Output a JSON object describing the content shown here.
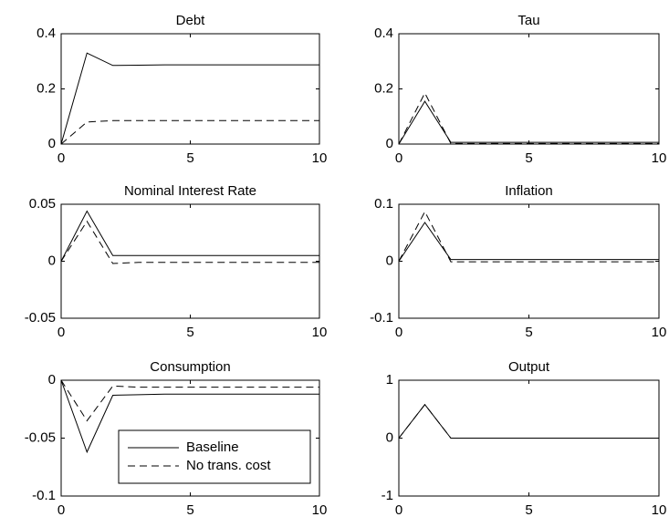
{
  "chart_data": [
    {
      "type": "line",
      "title": "Debt",
      "x": [
        0,
        1,
        2,
        3,
        4,
        5,
        6,
        7,
        8,
        9,
        10
      ],
      "xlim": [
        0,
        10
      ],
      "xticks": [
        0,
        5,
        10
      ],
      "ylim": [
        0,
        0.4
      ],
      "yticks": [
        0,
        0.2,
        0.4
      ],
      "series": [
        {
          "color": "#000000",
          "line_style": "solid",
          "values": [
            0,
            0.33,
            0.285,
            0.286,
            0.287,
            0.287,
            0.287,
            0.287,
            0.287,
            0.287,
            0.287
          ]
        },
        {
          "color": "#000000",
          "line_style": "dashed",
          "values": [
            0,
            0.08,
            0.085,
            0.085,
            0.085,
            0.085,
            0.085,
            0.085,
            0.085,
            0.085,
            0.085
          ]
        }
      ]
    },
    {
      "type": "line",
      "title": "Tau",
      "x": [
        0,
        1,
        2,
        3,
        4,
        5,
        6,
        7,
        8,
        9,
        10
      ],
      "xlim": [
        0,
        10
      ],
      "xticks": [
        0,
        5,
        10
      ],
      "ylim": [
        0,
        0.4
      ],
      "yticks": [
        0,
        0.2,
        0.4
      ],
      "series": [
        {
          "color": "#000000",
          "line_style": "solid",
          "values": [
            0,
            0.155,
            0.006,
            0.006,
            0.006,
            0.006,
            0.006,
            0.006,
            0.006,
            0.006,
            0.006
          ]
        },
        {
          "color": "#000000",
          "line_style": "dashed",
          "values": [
            0,
            0.185,
            0.002,
            0.002,
            0.002,
            0.002,
            0.002,
            0.002,
            0.002,
            0.002,
            0.002
          ]
        }
      ]
    },
    {
      "type": "line",
      "title": "Nominal Interest Rate",
      "x": [
        0,
        1,
        2,
        3,
        4,
        5,
        6,
        7,
        8,
        9,
        10
      ],
      "xlim": [
        0,
        10
      ],
      "xticks": [
        0,
        5,
        10
      ],
      "ylim": [
        -0.05,
        0.05
      ],
      "yticks": [
        -0.05,
        0,
        0.05
      ],
      "series": [
        {
          "color": "#000000",
          "line_style": "solid",
          "values": [
            0,
            0.044,
            0.005,
            0.005,
            0.005,
            0.005,
            0.005,
            0.005,
            0.005,
            0.005,
            0.005
          ]
        },
        {
          "color": "#000000",
          "line_style": "dashed",
          "values": [
            0,
            0.035,
            -0.002,
            -0.001,
            -0.001,
            -0.001,
            -0.001,
            -0.001,
            -0.001,
            -0.001,
            -0.001
          ]
        }
      ]
    },
    {
      "type": "line",
      "title": "Inflation",
      "x": [
        0,
        1,
        2,
        3,
        4,
        5,
        6,
        7,
        8,
        9,
        10
      ],
      "xlim": [
        0,
        10
      ],
      "xticks": [
        0,
        5,
        10
      ],
      "ylim": [
        -0.1,
        0.1
      ],
      "yticks": [
        -0.1,
        0,
        0.1
      ],
      "series": [
        {
          "color": "#000000",
          "line_style": "solid",
          "values": [
            0,
            0.068,
            0.003,
            0.003,
            0.003,
            0.003,
            0.003,
            0.003,
            0.003,
            0.003,
            0.003
          ]
        },
        {
          "color": "#000000",
          "line_style": "dashed",
          "values": [
            0,
            0.087,
            -0.001,
            -0.001,
            -0.001,
            -0.001,
            -0.001,
            -0.001,
            -0.001,
            -0.001,
            -0.001
          ]
        }
      ]
    },
    {
      "type": "line",
      "title": "Consumption",
      "x": [
        0,
        1,
        2,
        3,
        4,
        5,
        6,
        7,
        8,
        9,
        10
      ],
      "xlim": [
        0,
        10
      ],
      "xticks": [
        0,
        5,
        10
      ],
      "ylim": [
        -0.1,
        0
      ],
      "yticks": [
        -0.1,
        -0.05,
        0
      ],
      "legend": "lower right",
      "series": [
        {
          "name": "Baseline",
          "color": "#000000",
          "line_style": "solid",
          "values": [
            0,
            -0.062,
            -0.013,
            -0.0125,
            -0.012,
            -0.012,
            -0.012,
            -0.012,
            -0.012,
            -0.012,
            -0.012
          ]
        },
        {
          "name": "No trans. cost",
          "color": "#000000",
          "line_style": "dashed",
          "values": [
            0,
            -0.035,
            -0.005,
            -0.006,
            -0.006,
            -0.006,
            -0.006,
            -0.006,
            -0.006,
            -0.006,
            -0.006
          ]
        }
      ]
    },
    {
      "type": "line",
      "title": "Output",
      "x": [
        0,
        1,
        2,
        3,
        4,
        5,
        6,
        7,
        8,
        9,
        10
      ],
      "xlim": [
        0,
        10
      ],
      "xticks": [
        0,
        5,
        10
      ],
      "ylim": [
        -1,
        1
      ],
      "yticks": [
        -1,
        0,
        1
      ],
      "series": [
        {
          "color": "#000000",
          "line_style": "solid",
          "values": [
            0,
            0.58,
            0,
            0,
            0,
            0,
            0,
            0,
            0,
            0,
            0
          ]
        },
        {
          "color": "#000000",
          "line_style": "dashed",
          "values": [
            0,
            0.58,
            0,
            0,
            0,
            0,
            0,
            0,
            0,
            0,
            0
          ]
        }
      ]
    }
  ]
}
